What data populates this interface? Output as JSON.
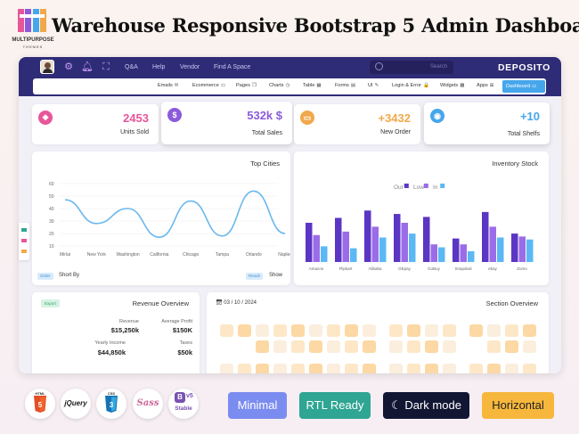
{
  "banner": {
    "logo_text": "MULTIPURPOSE",
    "logo_sub": "THEMES",
    "headline": "Warehouse Responsive Bootstrap 5 Admin Dashboard"
  },
  "topbar": {
    "links": [
      "Q&A",
      "Help",
      "Vendor",
      "Find A Space"
    ],
    "search_placeholder": "Search",
    "brand": "DEPOSITO"
  },
  "menu": {
    "items": [
      {
        "label": "Emails",
        "icon": "✉"
      },
      {
        "label": "Ecommerce",
        "icon": "▭"
      },
      {
        "label": "Pages",
        "icon": "❐"
      },
      {
        "label": "Charts",
        "icon": "◷"
      },
      {
        "label": "Table",
        "icon": "▦"
      },
      {
        "label": "Forms",
        "icon": "▤"
      },
      {
        "label": "UI",
        "icon": "✎"
      },
      {
        "label": "Login & Error",
        "icon": "🔒"
      },
      {
        "label": "Widgets",
        "icon": "▩"
      },
      {
        "label": "Apps",
        "icon": "⊞"
      }
    ],
    "active": "Dashboard",
    "active_icon": "▭"
  },
  "stats": [
    {
      "value": "2453",
      "label": "Units Sold",
      "color": "#e8569a",
      "icon": "❖"
    },
    {
      "value": "532k $",
      "label": "Total Sales",
      "color": "#8c5bdb",
      "icon": "$"
    },
    {
      "value": "+3432",
      "label": "New Order",
      "color": "#f0a94a",
      "icon": "▭"
    },
    {
      "value": "+10",
      "label": "Total Shelfs",
      "color": "#46a6ec",
      "icon": "◉"
    }
  ],
  "top_cities": {
    "title": "Top Cities",
    "footer_badge": "Order",
    "footer_label": "Short By",
    "footer_badge2": "Result",
    "footer_label2": "Show"
  },
  "inventory": {
    "title": "Inventory Stock"
  },
  "revenue": {
    "title": "Revenue Overview",
    "badge": "Export",
    "items": [
      {
        "label": "Revenue",
        "value": "$15,250k"
      },
      {
        "label": "Average Profit",
        "value": "$150K"
      },
      {
        "label": "Yearly Income",
        "value": "$44,850k"
      },
      {
        "label": "Taxes",
        "value": "$50k"
      }
    ]
  },
  "section": {
    "title": "Section Overview",
    "date": "03 / 10 / 2024"
  },
  "tech": {
    "html": "HTML",
    "jquery": "jQuery",
    "css": "CSS",
    "sass": "Sass",
    "bootstrap": "B",
    "bootstrap_ver": "v5",
    "bootstrap_note": "Stable"
  },
  "pills": [
    {
      "label": "Minimal",
      "bg": "#7b8cf0",
      "fg": "#ffffff"
    },
    {
      "label": "RTL Ready",
      "bg": "#2fa593",
      "fg": "#ffffff"
    },
    {
      "label": "Dark mode",
      "bg": "#111633",
      "fg": "#ffffff"
    },
    {
      "label": "Horizontal",
      "bg": "#f6b73c",
      "fg": "#222222"
    }
  ],
  "chart_data": [
    {
      "type": "line",
      "title": "Top Cities",
      "categories": [
        "Mirlai",
        "New York",
        "Washington",
        "California",
        "Chicago",
        "Tampa",
        "Orlando",
        "Naples"
      ],
      "values": [
        47,
        28,
        40,
        17,
        46,
        18,
        54,
        20
      ],
      "ylim": [
        10,
        60
      ],
      "yticks": [
        "10",
        "20",
        "30",
        "40",
        "50",
        "60"
      ],
      "xlabel": "",
      "ylabel": ""
    },
    {
      "type": "bar",
      "title": "Inventory Stock",
      "categories": [
        "Amazon",
        "Flipkart",
        "Alibaba",
        "GEpay",
        "GoBuy",
        "Snapdeal",
        "ebay",
        "Zomo"
      ],
      "series": [
        {
          "name": "Out",
          "color": "#5b35c4",
          "values": [
            80,
            90,
            105,
            98,
            92,
            48,
            102,
            58
          ]
        },
        {
          "name": "Low",
          "color": "#9b6ce8",
          "values": [
            55,
            62,
            72,
            80,
            36,
            36,
            72,
            52
          ]
        },
        {
          "name": "In",
          "color": "#5bb8f5",
          "values": [
            32,
            28,
            50,
            58,
            30,
            22,
            50,
            46
          ]
        }
      ],
      "legend": [
        "Out",
        "Low",
        "In"
      ],
      "ylim": [
        0,
        120
      ]
    }
  ]
}
